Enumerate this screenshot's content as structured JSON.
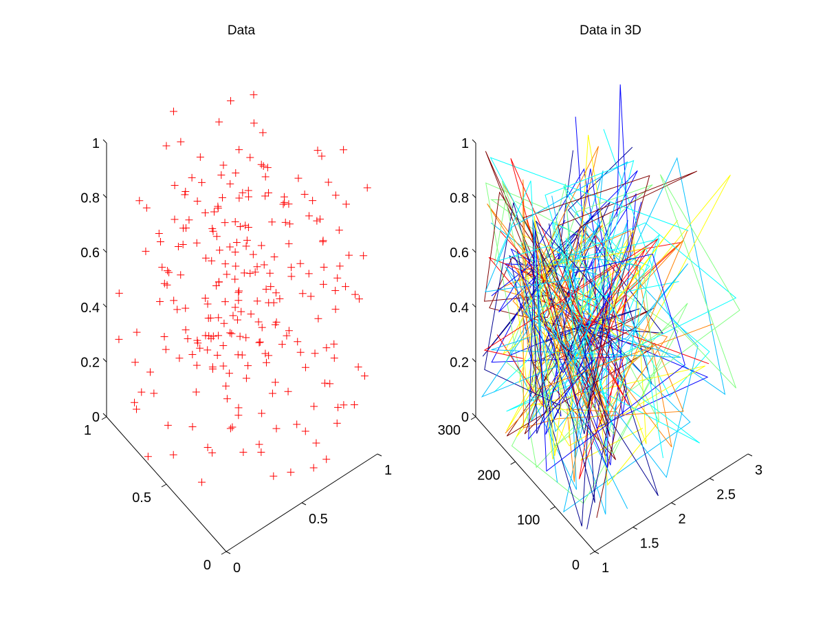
{
  "figure": {
    "background": "#ffffff",
    "axis_color": "#000000"
  },
  "chart_data": [
    {
      "type": "scatter",
      "dimensions": 3,
      "title": "Data",
      "marker": "plus",
      "marker_color": "#ff0000",
      "xlim": [
        0,
        1
      ],
      "ylim": [
        0,
        1
      ],
      "zlim": [
        0,
        1
      ],
      "x_ticks": [
        "0",
        "0.5",
        "1"
      ],
      "y_ticks": [
        "0",
        "0.5",
        "1"
      ],
      "z_ticks": [
        "0",
        "0.2",
        "0.4",
        "0.6",
        "0.8",
        "1"
      ],
      "grid": false,
      "legend": "none",
      "n_points": 250,
      "points": []
    },
    {
      "type": "line",
      "dimensions": 3,
      "title": "Data in 3D",
      "xlim": [
        1,
        3
      ],
      "ylim": [
        0,
        300
      ],
      "zlim": [
        0,
        1
      ],
      "x_ticks": [
        "1",
        "1.5",
        "2",
        "2.5",
        "3"
      ],
      "y_ticks": [
        "0",
        "100",
        "200",
        "300"
      ],
      "z_ticks": [
        "0",
        "0.2",
        "0.4",
        "0.6",
        "0.8",
        "1"
      ],
      "grid": false,
      "legend": "none",
      "colormap": [
        "#00008f",
        "#0000ff",
        "#00bfff",
        "#00ffff",
        "#80ff80",
        "#ffff00",
        "#ff8000",
        "#ff0000",
        "#800000"
      ],
      "n_lines": 40,
      "lines": []
    }
  ]
}
